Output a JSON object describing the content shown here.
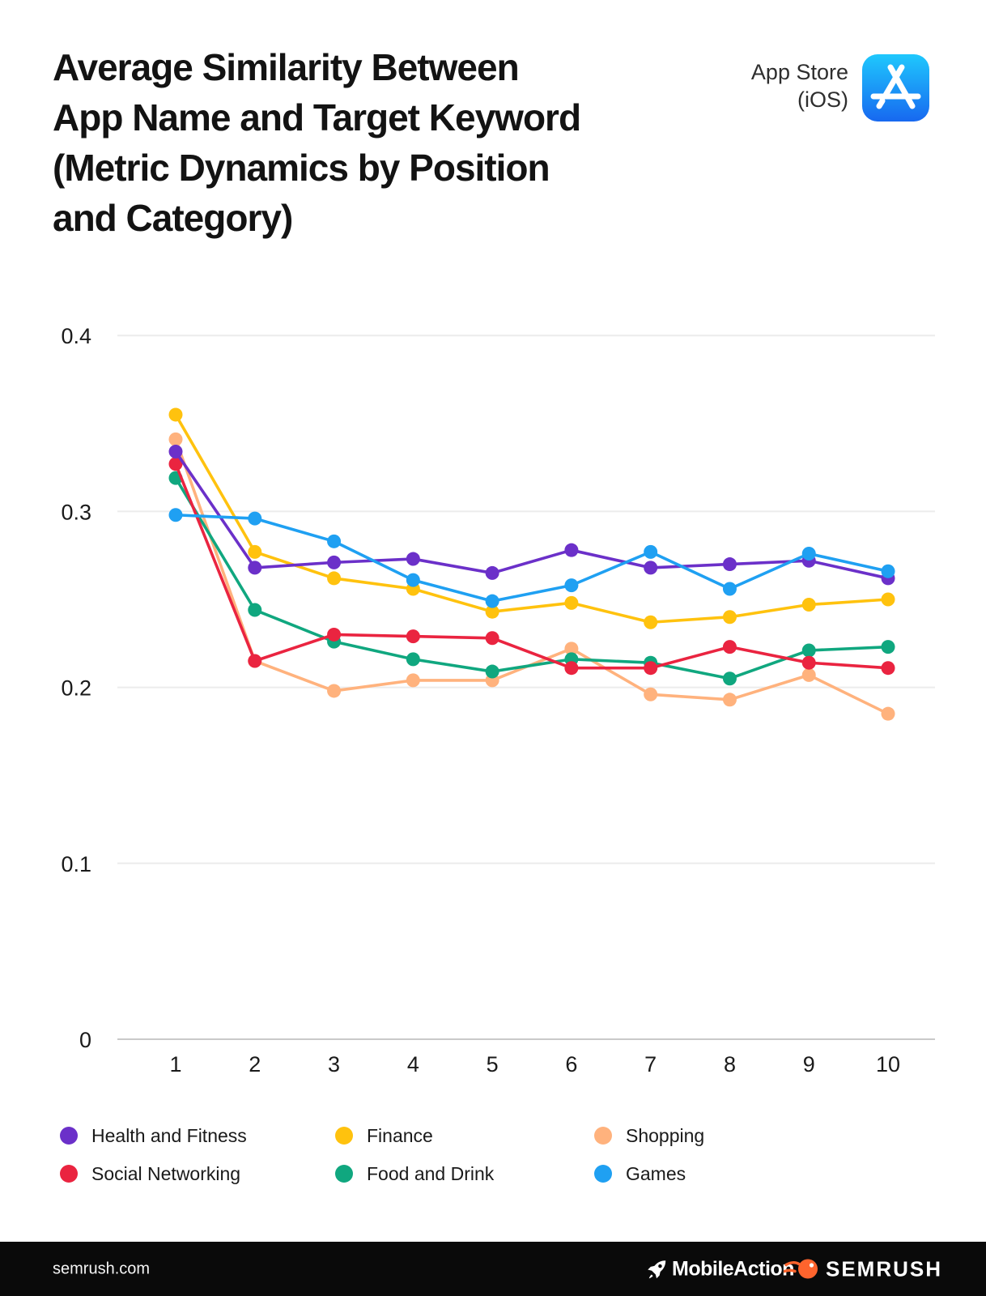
{
  "header": {
    "title_lines": [
      "Average Similarity Between",
      "App Name and Target Keyword",
      "(Metric Dynamics by Position",
      "and Category)"
    ],
    "platform": {
      "line1": "App Store",
      "line2": "(iOS)"
    }
  },
  "chart_data": {
    "type": "line",
    "title": "Average Similarity Between App Name and Target Keyword (Metric Dynamics by Position and Category)",
    "x": [
      1,
      2,
      3,
      4,
      5,
      6,
      7,
      8,
      9,
      10
    ],
    "xlabel": "",
    "ylabel": "",
    "ylim": [
      0,
      0.4
    ],
    "yticks": [
      0,
      0.1,
      0.2,
      0.3,
      0.4
    ],
    "ytick_labels": [
      "0",
      "0.1",
      "0.2",
      "0.3",
      "0.4"
    ],
    "grid": true,
    "legend_position": "bottom",
    "series": [
      {
        "name": "Health and Fitness",
        "color": "#6B30C9",
        "values": [
          0.334,
          0.268,
          0.271,
          0.273,
          0.265,
          0.278,
          0.268,
          0.27,
          0.272,
          0.262
        ]
      },
      {
        "name": "Finance",
        "color": "#FFC20E",
        "values": [
          0.355,
          0.277,
          0.262,
          0.256,
          0.243,
          0.248,
          0.237,
          0.24,
          0.247,
          0.25
        ]
      },
      {
        "name": "Shopping",
        "color": "#FFB27D",
        "values": [
          0.341,
          0.215,
          0.198,
          0.204,
          0.204,
          0.222,
          0.196,
          0.193,
          0.207,
          0.185
        ]
      },
      {
        "name": "Social Networking",
        "color": "#EA2440",
        "values": [
          0.327,
          0.215,
          0.23,
          0.229,
          0.228,
          0.211,
          0.211,
          0.223,
          0.214,
          0.211
        ]
      },
      {
        "name": "Food and Drink",
        "color": "#10A77F",
        "values": [
          0.319,
          0.244,
          0.226,
          0.216,
          0.209,
          0.216,
          0.214,
          0.205,
          0.221,
          0.223
        ]
      },
      {
        "name": "Games",
        "color": "#1FA0F2",
        "values": [
          0.298,
          0.296,
          0.283,
          0.261,
          0.249,
          0.258,
          0.277,
          0.256,
          0.276,
          0.266
        ]
      }
    ]
  },
  "colors": {
    "gridline": "#ECECEC",
    "axis_line": "#C9C9C9",
    "tick_text": "#1A1A1A",
    "footer_background": "#0A0A0A",
    "semrush_orange": "#FF642D",
    "appstore_gradient_top": "#1FC8FD",
    "appstore_gradient_bottom": "#1768F0"
  },
  "footer": {
    "site_text": "semrush.com",
    "mobileaction_text": "MobileAction",
    "semrush_text": "SEMRUSH"
  }
}
